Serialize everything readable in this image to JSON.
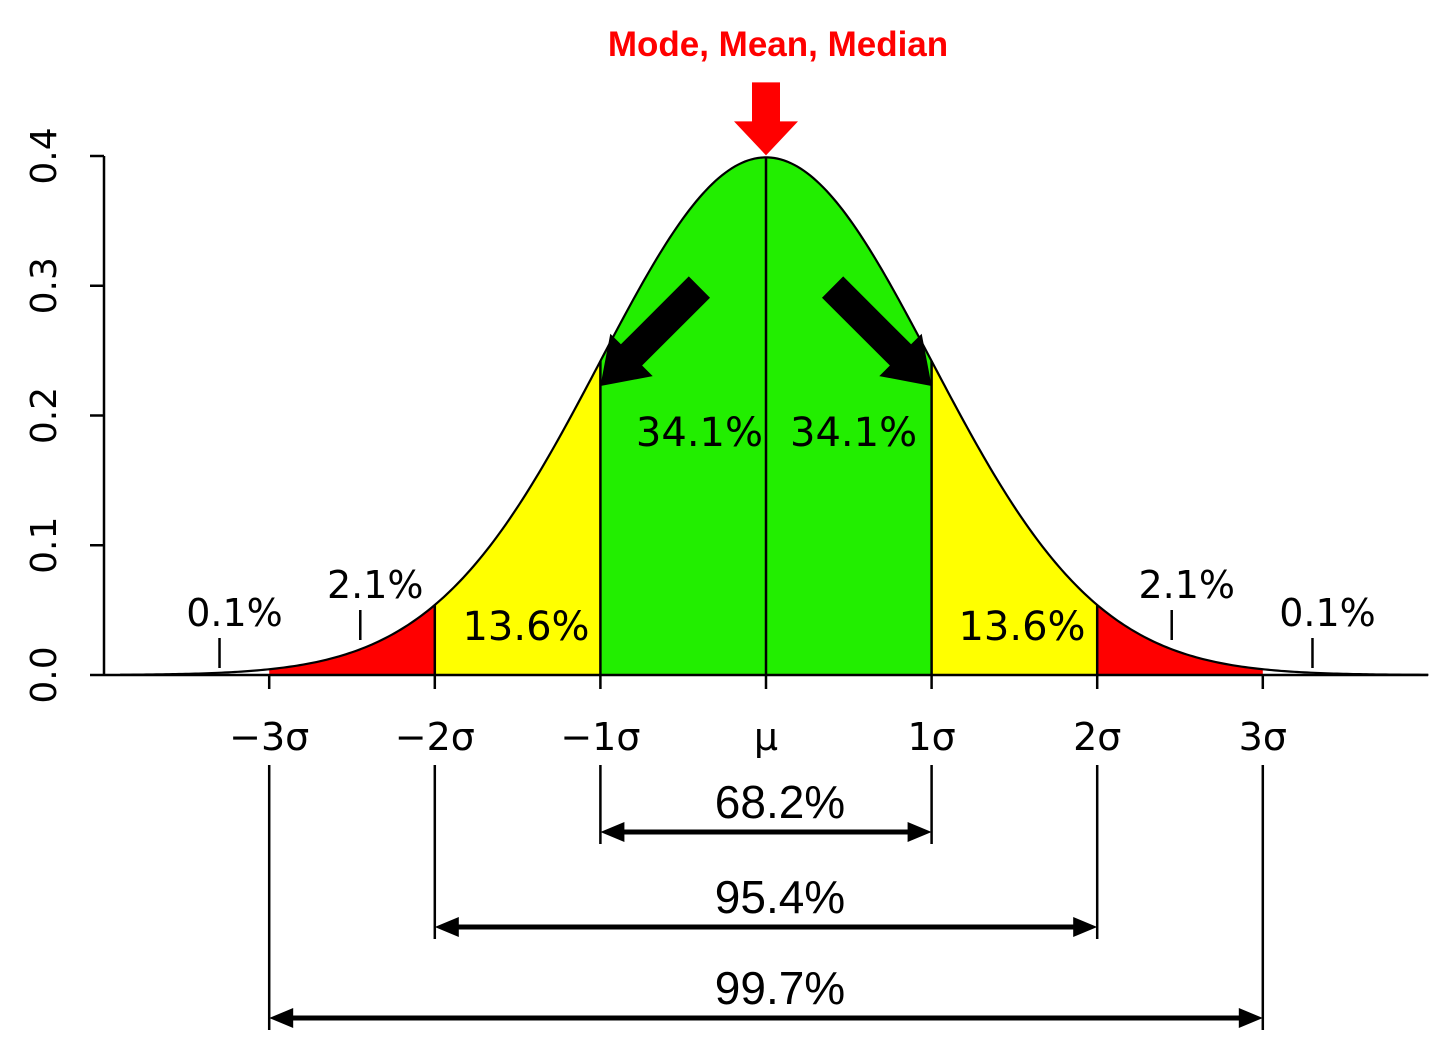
{
  "chart_data": {
    "type": "area",
    "distribution": "normal",
    "title": "Mode, Mean, Median",
    "xlabel": "",
    "ylabel": "",
    "xlim": [
      -3.9,
      4.0
    ],
    "ylim": [
      0,
      0.4
    ],
    "y_ticks": [
      "0.0",
      "0.1",
      "0.2",
      "0.3",
      "0.4"
    ],
    "x_ticks": [
      {
        "x": -3,
        "label": "−3σ"
      },
      {
        "x": -2,
        "label": "−2σ"
      },
      {
        "x": -1,
        "label": "−1σ"
      },
      {
        "x": 0,
        "label": "μ"
      },
      {
        "x": 1,
        "label": "1σ"
      },
      {
        "x": 2,
        "label": "2σ"
      },
      {
        "x": 3,
        "label": "3σ"
      }
    ],
    "regions": [
      {
        "from": -3,
        "to": -2,
        "label": "",
        "color": "#ff0000"
      },
      {
        "from": -2,
        "to": -1,
        "label": "13.6%",
        "color": "#ffff00"
      },
      {
        "from": -1,
        "to": 0,
        "label": "34.1%",
        "color": "#22ee00"
      },
      {
        "from": 0,
        "to": 1,
        "label": "34.1%",
        "color": "#22ee00"
      },
      {
        "from": 1,
        "to": 2,
        "label": "13.6%",
        "color": "#ffff00"
      },
      {
        "from": 2,
        "to": 3,
        "label": "",
        "color": "#ff0000"
      }
    ],
    "tail_annotations": [
      {
        "x": -3.3,
        "label": "0.1%"
      },
      {
        "x": -2.45,
        "label": "2.1%"
      },
      {
        "x": 2.45,
        "label": "2.1%"
      },
      {
        "x": 3.3,
        "label": "0.1%"
      }
    ],
    "spans": [
      {
        "from": -1,
        "to": 1,
        "label": "68.2%"
      },
      {
        "from": -2,
        "to": 2,
        "label": "95.4%"
      },
      {
        "from": -3,
        "to": 3,
        "label": "99.7%"
      }
    ],
    "pointers": [
      {
        "x": 0,
        "color": "#ff0000",
        "meaning": "peak"
      },
      {
        "x": -1,
        "color": "#000000",
        "meaning": "inflection"
      },
      {
        "x": 1,
        "color": "#000000",
        "meaning": "inflection"
      }
    ],
    "grid": false,
    "legend": "none"
  }
}
